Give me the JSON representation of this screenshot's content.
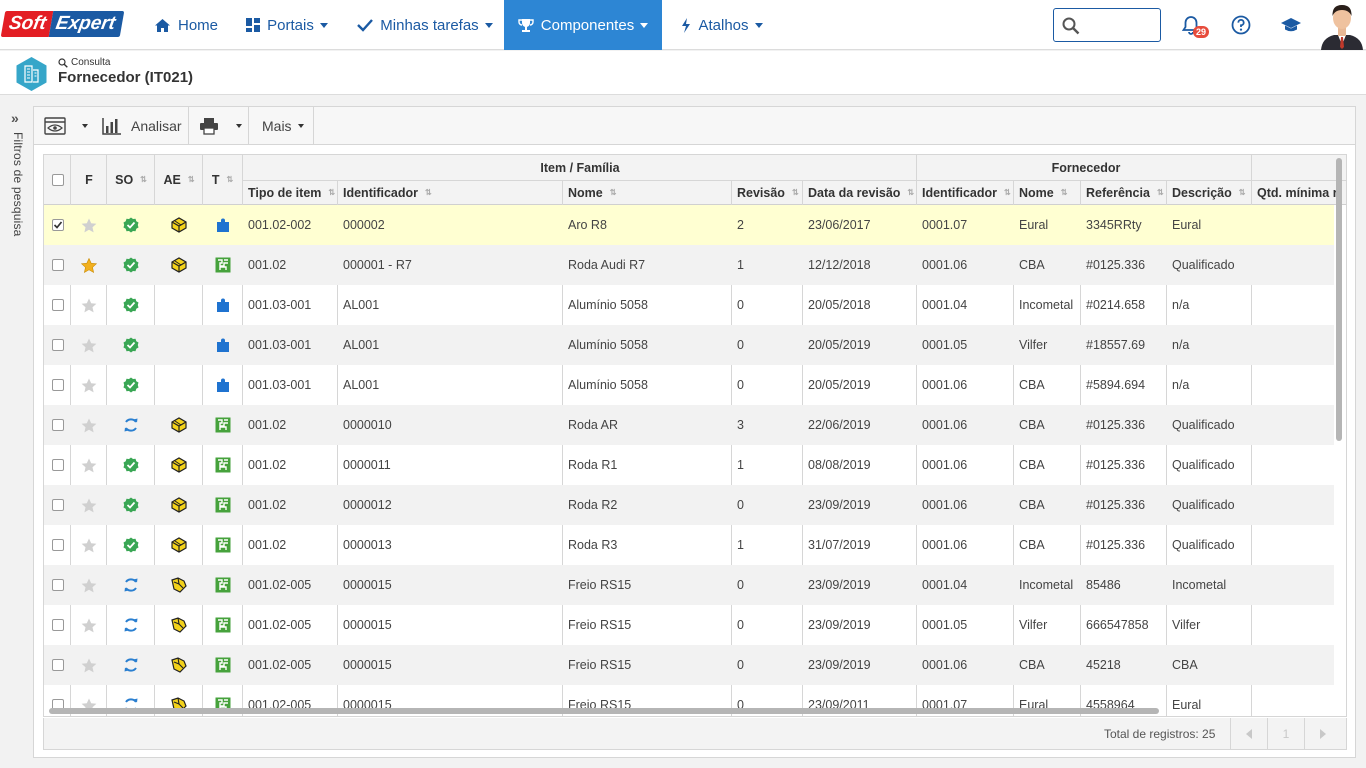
{
  "brand": {
    "part1": "Soft",
    "part2": "Expert"
  },
  "nav": [
    {
      "label": "Home",
      "icon": "home-icon"
    },
    {
      "label": "Portais",
      "icon": "grid-icon"
    },
    {
      "label": "Minhas tarefas",
      "icon": "check-icon"
    },
    {
      "label": "Componentes",
      "icon": "trophy-icon",
      "active": true
    },
    {
      "label": "Atalhos",
      "icon": "bolt-icon"
    }
  ],
  "search": {
    "placeholder": "",
    "value": ""
  },
  "notifications": {
    "count": "29"
  },
  "header": {
    "breadcrumb": "Consulta",
    "title": "Fornecedor (IT021)"
  },
  "sidebar": {
    "filter_label": "Filtros de pesquisa",
    "toggle": "»"
  },
  "toolbar": {
    "analyze_label": "Analisar",
    "more_label": "Mais"
  },
  "grid": {
    "group_headers": {
      "item": "Item / Família",
      "supplier": "Fornecedor"
    },
    "columns": {
      "f": "F",
      "so": "SO",
      "ae": "AE",
      "t": "T",
      "tipo": "Tipo de item",
      "ident": "Identificador",
      "nome": "Nome",
      "revisao": "Revisão",
      "data": "Data da revisão",
      "forn_ident": "Identificador",
      "forn_nome": "Nome",
      "referencia": "Referência",
      "descricao": "Descrição",
      "qtd": "Qtd. mínima r"
    },
    "rows": [
      {
        "checked": true,
        "fav": false,
        "so": "ok",
        "ae": "yes",
        "t": "piece",
        "tipo": "001.02-002",
        "ident": "000002",
        "nome": "Aro R8",
        "rev": "2",
        "data": "23/06/2017",
        "fid": "0001.07",
        "fnome": "Eural",
        "ref": "3345RRty",
        "desc": "Eural"
      },
      {
        "checked": false,
        "fav": true,
        "so": "ok",
        "ae": "yes",
        "t": "assembly",
        "tipo": "001.02",
        "ident": "000001 - R7",
        "nome": "Roda Audi R7",
        "rev": "1",
        "data": "12/12/2018",
        "fid": "0001.06",
        "fnome": "CBA",
        "ref": "#0125.336",
        "desc": "Qualificado"
      },
      {
        "checked": false,
        "fav": false,
        "so": "ok",
        "ae": "",
        "t": "piece",
        "tipo": "001.03-001",
        "ident": "AL001",
        "nome": "Alumínio 5058",
        "rev": "0",
        "data": "20/05/2018",
        "fid": "0001.04",
        "fnome": "Incometal",
        "ref": "#0214.658",
        "desc": "n/a"
      },
      {
        "checked": false,
        "fav": false,
        "so": "ok",
        "ae": "",
        "t": "piece",
        "tipo": "001.03-001",
        "ident": "AL001",
        "nome": "Alumínio 5058",
        "rev": "0",
        "data": "20/05/2019",
        "fid": "0001.05",
        "fnome": "Vilfer",
        "ref": "#18557.69",
        "desc": "n/a"
      },
      {
        "checked": false,
        "fav": false,
        "so": "ok",
        "ae": "",
        "t": "piece",
        "tipo": "001.03-001",
        "ident": "AL001",
        "nome": "Alumínio 5058",
        "rev": "0",
        "data": "20/05/2019",
        "fid": "0001.06",
        "fnome": "CBA",
        "ref": "#5894.694",
        "desc": "n/a"
      },
      {
        "checked": false,
        "fav": false,
        "so": "sync",
        "ae": "yes",
        "t": "assembly",
        "tipo": "001.02",
        "ident": "0000010",
        "nome": "Roda AR",
        "rev": "3",
        "data": "22/06/2019",
        "fid": "0001.06",
        "fnome": "CBA",
        "ref": "#0125.336",
        "desc": "Qualificado"
      },
      {
        "checked": false,
        "fav": false,
        "so": "ok",
        "ae": "yes",
        "t": "assembly",
        "tipo": "001.02",
        "ident": "0000011",
        "nome": "Roda R1",
        "rev": "1",
        "data": "08/08/2019",
        "fid": "0001.06",
        "fnome": "CBA",
        "ref": "#0125.336",
        "desc": "Qualificado"
      },
      {
        "checked": false,
        "fav": false,
        "so": "ok",
        "ae": "yes",
        "t": "assembly",
        "tipo": "001.02",
        "ident": "0000012",
        "nome": "Roda R2",
        "rev": "0",
        "data": "23/09/2019",
        "fid": "0001.06",
        "fnome": "CBA",
        "ref": "#0125.336",
        "desc": "Qualificado"
      },
      {
        "checked": false,
        "fav": false,
        "so": "ok",
        "ae": "yes",
        "t": "assembly",
        "tipo": "001.02",
        "ident": "0000013",
        "nome": "Roda R3",
        "rev": "1",
        "data": "31/07/2019",
        "fid": "0001.06",
        "fnome": "CBA",
        "ref": "#0125.336",
        "desc": "Qualificado"
      },
      {
        "checked": false,
        "fav": false,
        "so": "sync",
        "ae": "yes2",
        "t": "assembly",
        "tipo": "001.02-005",
        "ident": "0000015",
        "nome": "Freio RS15",
        "rev": "0",
        "data": "23/09/2019",
        "fid": "0001.04",
        "fnome": "Incometal",
        "ref": "85486",
        "desc": "Incometal"
      },
      {
        "checked": false,
        "fav": false,
        "so": "sync",
        "ae": "yes2",
        "t": "assembly",
        "tipo": "001.02-005",
        "ident": "0000015",
        "nome": "Freio RS15",
        "rev": "0",
        "data": "23/09/2019",
        "fid": "0001.05",
        "fnome": "Vilfer",
        "ref": "666547858",
        "desc": "Vilfer"
      },
      {
        "checked": false,
        "fav": false,
        "so": "sync",
        "ae": "yes2",
        "t": "assembly",
        "tipo": "001.02-005",
        "ident": "0000015",
        "nome": "Freio RS15",
        "rev": "0",
        "data": "23/09/2019",
        "fid": "0001.06",
        "fnome": "CBA",
        "ref": "45218",
        "desc": "CBA"
      },
      {
        "checked": false,
        "fav": false,
        "so": "sync",
        "ae": "yes2",
        "t": "assembly",
        "tipo": "001.02-005",
        "ident": "0000015",
        "nome": "Freio RS15",
        "rev": "0",
        "data": "23/09/2011",
        "fid": "0001.07",
        "fnome": "Eural",
        "ref": "4558964",
        "desc": "Eural"
      }
    ]
  },
  "footer": {
    "total_label": "Total de registros: 25",
    "page": "1"
  },
  "colors": {
    "primary": "#1b5aa3",
    "nav_active": "#2d86d4",
    "selected_row": "#ffffd2",
    "ok_green": "#3aa655",
    "sync_blue": "#2a7fd0",
    "star_gold": "#f2b01e"
  }
}
